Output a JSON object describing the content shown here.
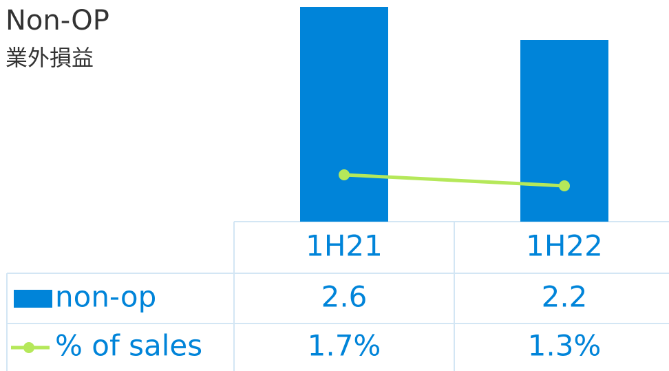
{
  "chart_data": {
    "type": "bar",
    "title": "Non-OP",
    "subtitle": "業外損益",
    "categories": [
      "1H21",
      "1H22"
    ],
    "series": [
      {
        "name": "non-op",
        "type": "bar",
        "color": "#0084d9",
        "values": [
          2.6,
          2.2
        ]
      },
      {
        "name": "% of sales",
        "type": "line",
        "color": "#b5e85a",
        "values": [
          1.7,
          1.3
        ],
        "value_labels": [
          "1.7%",
          "1.3%"
        ]
      }
    ]
  }
}
